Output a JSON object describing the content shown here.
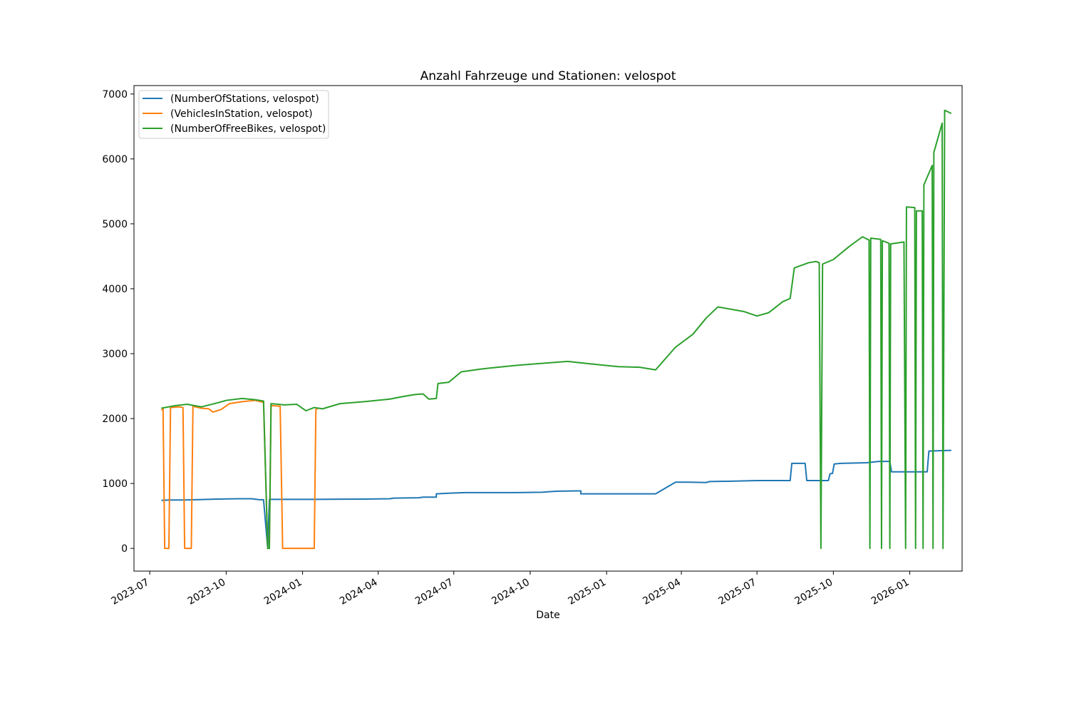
{
  "chart_data": {
    "type": "line",
    "title": "Anzahl Fahrzeuge und Stationen: velospot",
    "xlabel": "Date",
    "ylabel": "",
    "xlim": [
      "2023-06-12",
      "2026-03-05"
    ],
    "ylim": [
      -350,
      7130
    ],
    "x_ticks": [
      "2023-07",
      "2023-10",
      "2024-01",
      "2024-04",
      "2024-07",
      "2024-10",
      "2025-01",
      "2025-04",
      "2025-07",
      "2025-10",
      "2026-01"
    ],
    "y_ticks": [
      0,
      1000,
      2000,
      3000,
      4000,
      5000,
      6000,
      7000
    ],
    "legend_position": "top-left",
    "grid": false,
    "colors": [
      "#1f77b4",
      "#ff7f0e",
      "#2ca02c"
    ],
    "series": [
      {
        "name": "(NumberOfStations, velospot)",
        "color": "#1f77b4",
        "points": [
          [
            "2023-07-15",
            740
          ],
          [
            "2023-07-25",
            745
          ],
          [
            "2023-08-10",
            745
          ],
          [
            "2023-08-25",
            750
          ],
          [
            "2023-09-20",
            760
          ],
          [
            "2023-10-15",
            765
          ],
          [
            "2023-11-01",
            765
          ],
          [
            "2023-11-10",
            750
          ],
          [
            "2023-11-15",
            750
          ],
          [
            "2023-11-20",
            0
          ],
          [
            "2023-11-22",
            755
          ],
          [
            "2023-12-10",
            755
          ],
          [
            "2024-01-15",
            755
          ],
          [
            "2024-02-15",
            758
          ],
          [
            "2024-03-15",
            760
          ],
          [
            "2024-04-15",
            765
          ],
          [
            "2024-04-20",
            775
          ],
          [
            "2024-05-20",
            780
          ],
          [
            "2024-05-25",
            790
          ],
          [
            "2024-06-10",
            790
          ],
          [
            "2024-06-10",
            840
          ],
          [
            "2024-06-25",
            850
          ],
          [
            "2024-07-15",
            860
          ],
          [
            "2024-08-15",
            860
          ],
          [
            "2024-09-15",
            860
          ],
          [
            "2024-10-15",
            865
          ],
          [
            "2024-11-01",
            880
          ],
          [
            "2024-11-25",
            885
          ],
          [
            "2024-12-01",
            885
          ],
          [
            "2024-12-01",
            840
          ],
          [
            "2025-01-15",
            840
          ],
          [
            "2025-02-15",
            840
          ],
          [
            "2025-03-01",
            840
          ],
          [
            "2025-03-25",
            1020
          ],
          [
            "2025-04-10",
            1020
          ],
          [
            "2025-05-01",
            1015
          ],
          [
            "2025-05-05",
            1030
          ],
          [
            "2025-06-01",
            1035
          ],
          [
            "2025-07-01",
            1045
          ],
          [
            "2025-08-10",
            1045
          ],
          [
            "2025-08-12",
            1310
          ],
          [
            "2025-08-28",
            1310
          ],
          [
            "2025-08-30",
            1045
          ],
          [
            "2025-09-25",
            1045
          ],
          [
            "2025-09-27",
            1150
          ],
          [
            "2025-09-30",
            1155
          ],
          [
            "2025-10-02",
            1300
          ],
          [
            "2025-10-10",
            1310
          ],
          [
            "2025-11-10",
            1320
          ],
          [
            "2025-11-25",
            1340
          ],
          [
            "2025-12-08",
            1340
          ],
          [
            "2025-12-10",
            1180
          ],
          [
            "2026-01-10",
            1180
          ],
          [
            "2026-01-22",
            1180
          ],
          [
            "2026-01-24",
            1500
          ],
          [
            "2026-02-20",
            1510
          ]
        ]
      },
      {
        "name": "(VehiclesInStation, velospot)",
        "color": "#ff7f0e",
        "points": [
          [
            "2023-07-15",
            2130
          ],
          [
            "2023-07-17",
            2150
          ],
          [
            "2023-07-19",
            0
          ],
          [
            "2023-07-24",
            0
          ],
          [
            "2023-07-26",
            2170
          ],
          [
            "2023-08-05",
            2180
          ],
          [
            "2023-08-10",
            2170
          ],
          [
            "2023-08-12",
            0
          ],
          [
            "2023-08-20",
            0
          ],
          [
            "2023-08-22",
            2190
          ],
          [
            "2023-09-01",
            2160
          ],
          [
            "2023-09-10",
            2150
          ],
          [
            "2023-09-15",
            2100
          ],
          [
            "2023-09-25",
            2140
          ],
          [
            "2023-10-05",
            2230
          ],
          [
            "2023-10-20",
            2260
          ],
          [
            "2023-11-05",
            2280
          ],
          [
            "2023-11-15",
            2250
          ],
          [
            "2023-11-20",
            0
          ],
          [
            "2023-11-22",
            0
          ],
          [
            "2023-11-24",
            2200
          ],
          [
            "2023-12-05",
            2190
          ],
          [
            "2023-12-08",
            0
          ],
          [
            "2024-01-15",
            0
          ],
          [
            "2024-01-17",
            2140
          ],
          [
            "2024-01-20",
            2160
          ]
        ]
      },
      {
        "name": "(NumberOfFreeBikes, velospot)",
        "color": "#2ca02c",
        "points": [
          [
            "2023-07-15",
            2160
          ],
          [
            "2023-08-01",
            2200
          ],
          [
            "2023-08-15",
            2220
          ],
          [
            "2023-09-01",
            2180
          ],
          [
            "2023-09-20",
            2240
          ],
          [
            "2023-10-01",
            2280
          ],
          [
            "2023-10-20",
            2310
          ],
          [
            "2023-11-05",
            2290
          ],
          [
            "2023-11-15",
            2270
          ],
          [
            "2023-11-20",
            0
          ],
          [
            "2023-11-22",
            0
          ],
          [
            "2023-11-24",
            2230
          ],
          [
            "2023-12-10",
            2210
          ],
          [
            "2023-12-25",
            2220
          ],
          [
            "2024-01-05",
            2120
          ],
          [
            "2024-01-15",
            2170
          ],
          [
            "2024-01-25",
            2150
          ],
          [
            "2024-02-15",
            2230
          ],
          [
            "2024-03-15",
            2260
          ],
          [
            "2024-04-15",
            2300
          ],
          [
            "2024-05-01",
            2340
          ],
          [
            "2024-05-15",
            2370
          ],
          [
            "2024-05-25",
            2380
          ],
          [
            "2024-06-01",
            2300
          ],
          [
            "2024-06-10",
            2310
          ],
          [
            "2024-06-12",
            2540
          ],
          [
            "2024-06-25",
            2560
          ],
          [
            "2024-07-10",
            2720
          ],
          [
            "2024-08-01",
            2760
          ],
          [
            "2024-08-15",
            2780
          ],
          [
            "2024-09-15",
            2820
          ],
          [
            "2024-10-15",
            2850
          ],
          [
            "2024-11-15",
            2880
          ],
          [
            "2024-12-15",
            2840
          ],
          [
            "2025-01-15",
            2800
          ],
          [
            "2025-02-10",
            2790
          ],
          [
            "2025-03-01",
            2750
          ],
          [
            "2025-03-25",
            3100
          ],
          [
            "2025-04-15",
            3300
          ],
          [
            "2025-05-01",
            3550
          ],
          [
            "2025-05-15",
            3720
          ],
          [
            "2025-06-15",
            3650
          ],
          [
            "2025-07-01",
            3580
          ],
          [
            "2025-07-15",
            3630
          ],
          [
            "2025-08-01",
            3800
          ],
          [
            "2025-08-10",
            3850
          ],
          [
            "2025-08-15",
            4320
          ],
          [
            "2025-09-01",
            4400
          ],
          [
            "2025-09-10",
            4420
          ],
          [
            "2025-09-14",
            4400
          ],
          [
            "2025-09-16",
            0
          ],
          [
            "2025-09-18",
            4380
          ],
          [
            "2025-10-01",
            4450
          ],
          [
            "2025-10-20",
            4650
          ],
          [
            "2025-11-05",
            4800
          ],
          [
            "2025-11-13",
            4750
          ],
          [
            "2025-11-14",
            0
          ],
          [
            "2025-11-15",
            4780
          ],
          [
            "2025-11-27",
            4760
          ],
          [
            "2025-11-28",
            0
          ],
          [
            "2025-11-29",
            4740
          ],
          [
            "2025-12-07",
            4700
          ],
          [
            "2025-12-08",
            0
          ],
          [
            "2025-12-09",
            4690
          ],
          [
            "2025-12-25",
            4720
          ],
          [
            "2025-12-27",
            0
          ],
          [
            "2025-12-28",
            5260
          ],
          [
            "2026-01-07",
            5250
          ],
          [
            "2026-01-08",
            0
          ],
          [
            "2026-01-09",
            5200
          ],
          [
            "2026-01-16",
            5200
          ],
          [
            "2026-01-17",
            0
          ],
          [
            "2026-01-18",
            5600
          ],
          [
            "2026-01-28",
            5900
          ],
          [
            "2026-01-29",
            0
          ],
          [
            "2026-01-30",
            6100
          ],
          [
            "2026-02-09",
            6550
          ],
          [
            "2026-02-10",
            0
          ],
          [
            "2026-02-12",
            6750
          ],
          [
            "2026-02-20",
            6700
          ]
        ]
      }
    ]
  }
}
